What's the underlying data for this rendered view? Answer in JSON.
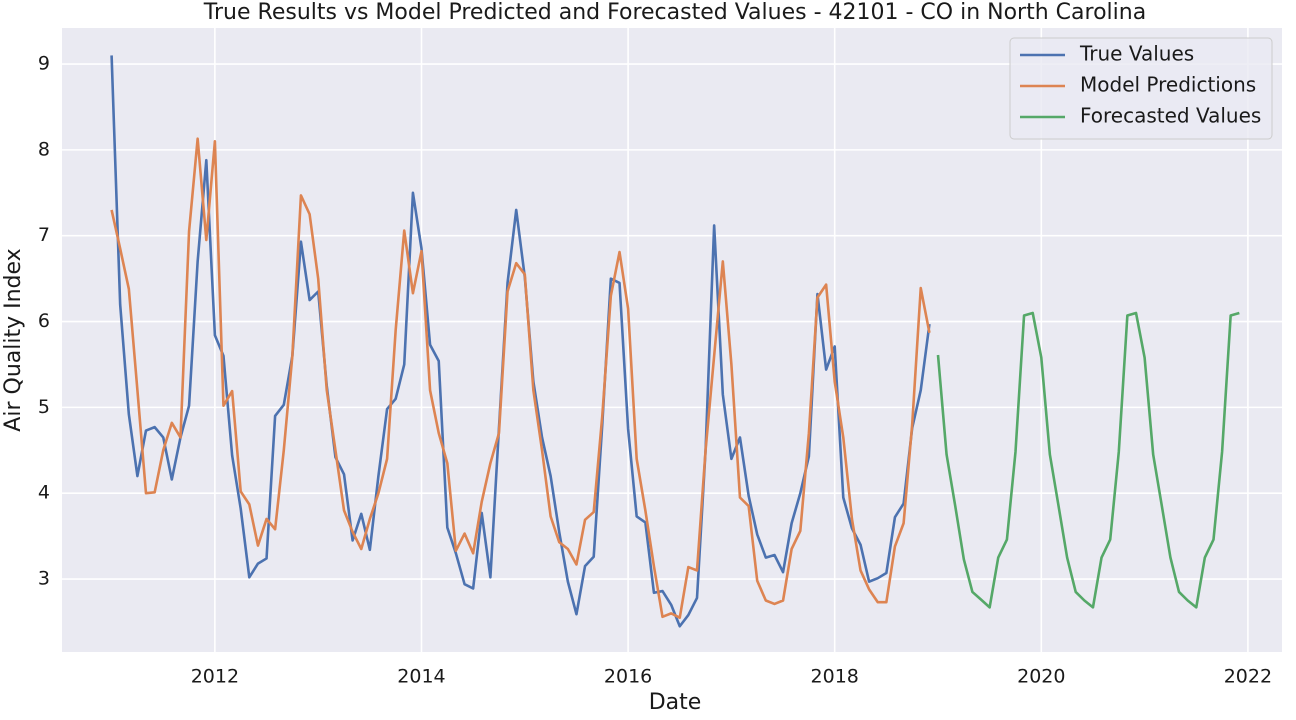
{
  "chart_data": {
    "type": "line",
    "title": "True Results vs Model Predicted and Forecasted Values - 42101 - CO in North Carolina",
    "x_label": "Date",
    "y_label": "Air Quality Index",
    "xlim": [
      2010.52,
      2022.33
    ],
    "ylim": [
      2.15,
      9.42
    ],
    "xticks": [
      2012,
      2014,
      2016,
      2018,
      2020,
      2022
    ],
    "yticks": [
      3,
      4,
      5,
      6,
      7,
      8,
      9
    ],
    "grid": true,
    "legend": "upper right",
    "series": [
      {
        "name": "True Values",
        "color": "#4c72b0",
        "x": [
          2011.0,
          2011.083,
          2011.167,
          2011.25,
          2011.333,
          2011.417,
          2011.5,
          2011.583,
          2011.667,
          2011.75,
          2011.833,
          2011.917,
          2012.0,
          2012.083,
          2012.167,
          2012.25,
          2012.333,
          2012.417,
          2012.5,
          2012.583,
          2012.667,
          2012.75,
          2012.833,
          2012.917,
          2013.0,
          2013.083,
          2013.167,
          2013.25,
          2013.333,
          2013.417,
          2013.5,
          2013.583,
          2013.667,
          2013.75,
          2013.833,
          2013.917,
          2014.0,
          2014.083,
          2014.167,
          2014.25,
          2014.333,
          2014.417,
          2014.5,
          2014.583,
          2014.667,
          2014.75,
          2014.833,
          2014.917,
          2015.0,
          2015.083,
          2015.167,
          2015.25,
          2015.333,
          2015.417,
          2015.5,
          2015.583,
          2015.667,
          2015.75,
          2015.833,
          2015.917,
          2016.0,
          2016.083,
          2016.167,
          2016.25,
          2016.333,
          2016.417,
          2016.5,
          2016.583,
          2016.667,
          2016.75,
          2016.833,
          2016.917,
          2017.0,
          2017.083,
          2017.167,
          2017.25,
          2017.333,
          2017.417,
          2017.5,
          2017.583,
          2017.667,
          2017.75,
          2017.833,
          2017.917,
          2018.0,
          2018.083,
          2018.167,
          2018.25,
          2018.333,
          2018.417,
          2018.5,
          2018.583,
          2018.667,
          2018.75,
          2018.833,
          2018.917
        ],
        "values": [
          9.1,
          6.2,
          4.92,
          4.2,
          4.73,
          4.77,
          4.65,
          4.16,
          4.65,
          5.02,
          6.7,
          7.88,
          5.84,
          5.6,
          4.44,
          3.82,
          3.02,
          3.18,
          3.24,
          4.9,
          5.03,
          5.6,
          6.93,
          6.25,
          6.35,
          5.25,
          4.42,
          4.22,
          3.45,
          3.76,
          3.34,
          4.2,
          4.98,
          5.1,
          5.5,
          7.5,
          6.85,
          5.73,
          5.54,
          3.6,
          3.3,
          2.94,
          2.89,
          3.77,
          3.02,
          4.76,
          6.45,
          7.3,
          6.52,
          5.3,
          4.65,
          4.2,
          3.55,
          2.97,
          2.59,
          3.15,
          3.26,
          4.8,
          6.5,
          6.45,
          4.75,
          3.73,
          3.66,
          2.84,
          2.86,
          2.7,
          2.45,
          2.58,
          2.78,
          4.5,
          7.12,
          5.15,
          4.4,
          4.65,
          3.97,
          3.52,
          3.25,
          3.28,
          3.08,
          3.65,
          4.0,
          4.43,
          6.32,
          5.44,
          5.71,
          3.95,
          3.59,
          3.4,
          2.97,
          3.01,
          3.07,
          3.72,
          3.88,
          4.76,
          5.2,
          5.97
        ]
      },
      {
        "name": "Model Predictions",
        "color": "#dd8452",
        "x": [
          2011.0,
          2011.083,
          2011.167,
          2011.25,
          2011.333,
          2011.417,
          2011.5,
          2011.583,
          2011.667,
          2011.75,
          2011.833,
          2011.917,
          2012.0,
          2012.083,
          2012.167,
          2012.25,
          2012.333,
          2012.417,
          2012.5,
          2012.583,
          2012.667,
          2012.75,
          2012.833,
          2012.917,
          2013.0,
          2013.083,
          2013.167,
          2013.25,
          2013.333,
          2013.417,
          2013.5,
          2013.583,
          2013.667,
          2013.75,
          2013.833,
          2013.917,
          2014.0,
          2014.083,
          2014.167,
          2014.25,
          2014.333,
          2014.417,
          2014.5,
          2014.583,
          2014.667,
          2014.75,
          2014.833,
          2014.917,
          2015.0,
          2015.083,
          2015.167,
          2015.25,
          2015.333,
          2015.417,
          2015.5,
          2015.583,
          2015.667,
          2015.75,
          2015.833,
          2015.917,
          2016.0,
          2016.083,
          2016.167,
          2016.25,
          2016.333,
          2016.417,
          2016.5,
          2016.583,
          2016.667,
          2016.75,
          2016.833,
          2016.917,
          2017.0,
          2017.083,
          2017.167,
          2017.25,
          2017.333,
          2017.417,
          2017.5,
          2017.583,
          2017.667,
          2017.75,
          2017.833,
          2017.917,
          2018.0,
          2018.083,
          2018.167,
          2018.25,
          2018.333,
          2018.417,
          2018.5,
          2018.583,
          2018.667,
          2018.75,
          2018.833,
          2018.917
        ],
        "values": [
          7.3,
          6.85,
          6.38,
          5.2,
          4.0,
          4.01,
          4.5,
          4.82,
          4.65,
          7.05,
          8.13,
          6.95,
          8.1,
          5.02,
          5.19,
          4.02,
          3.87,
          3.39,
          3.7,
          3.58,
          4.5,
          5.6,
          7.47,
          7.25,
          6.5,
          5.2,
          4.5,
          3.8,
          3.55,
          3.35,
          3.7,
          4.0,
          4.4,
          5.9,
          7.06,
          6.33,
          6.82,
          5.2,
          4.7,
          4.35,
          3.33,
          3.53,
          3.3,
          3.9,
          4.35,
          4.7,
          6.35,
          6.68,
          6.55,
          5.2,
          4.5,
          3.73,
          3.43,
          3.35,
          3.17,
          3.69,
          3.78,
          4.9,
          6.3,
          6.81,
          6.15,
          4.4,
          3.8,
          3.15,
          2.56,
          2.6,
          2.55,
          3.14,
          3.1,
          4.5,
          5.6,
          6.7,
          5.5,
          3.95,
          3.85,
          2.98,
          2.75,
          2.71,
          2.75,
          3.35,
          3.56,
          4.7,
          6.28,
          6.43,
          5.3,
          4.65,
          3.7,
          3.1,
          2.88,
          2.73,
          2.73,
          3.38,
          3.65,
          4.8,
          6.39,
          5.87
        ]
      },
      {
        "name": "Forecasted Values",
        "color": "#55a868",
        "x": [
          2019.0,
          2019.083,
          2019.167,
          2019.25,
          2019.333,
          2019.417,
          2019.5,
          2019.583,
          2019.667,
          2019.75,
          2019.833,
          2019.917,
          2020.0,
          2020.083,
          2020.167,
          2020.25,
          2020.333,
          2020.417,
          2020.5,
          2020.583,
          2020.667,
          2020.75,
          2020.833,
          2020.917,
          2021.0,
          2021.083,
          2021.167,
          2021.25,
          2021.333,
          2021.417,
          2021.5,
          2021.583,
          2021.667,
          2021.75,
          2021.833,
          2021.917
        ],
        "values": [
          5.61,
          4.45,
          3.85,
          3.23,
          2.85,
          2.76,
          2.67,
          3.25,
          3.46,
          4.48,
          6.07,
          6.1,
          5.58,
          4.45,
          3.85,
          3.25,
          2.85,
          2.75,
          2.67,
          3.25,
          3.46,
          4.48,
          6.07,
          6.1,
          5.58,
          4.45,
          3.85,
          3.25,
          2.85,
          2.75,
          2.67,
          3.25,
          3.46,
          4.48,
          6.07,
          6.1
        ]
      }
    ]
  }
}
